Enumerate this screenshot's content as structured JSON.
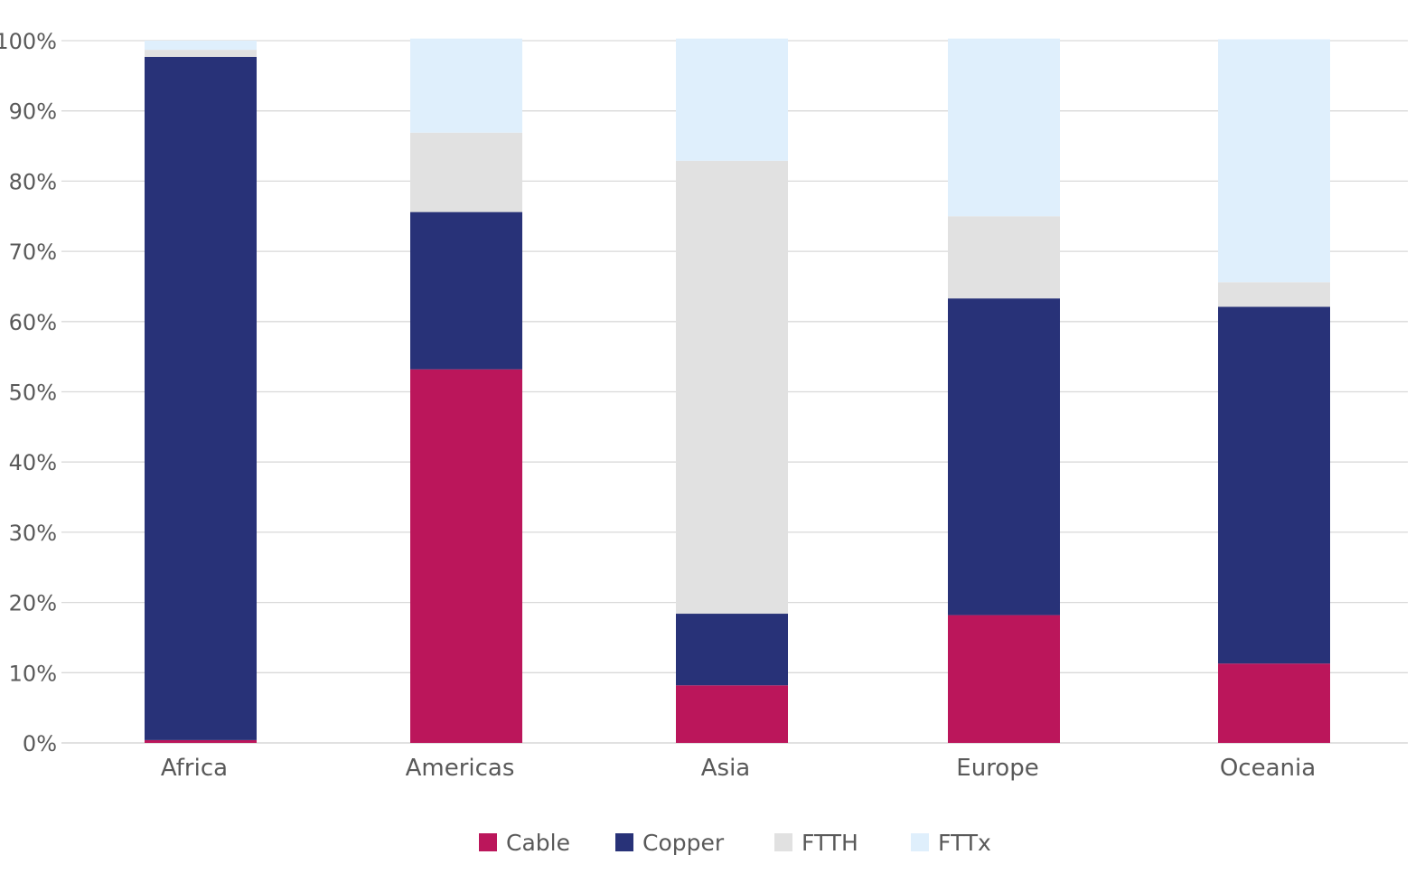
{
  "chart_data": {
    "type": "bar",
    "stacked": true,
    "categories": [
      "Africa",
      "Americas",
      "Asia",
      "Europe",
      "Oceania"
    ],
    "series": [
      {
        "name": "Cable",
        "color": "#bb165b",
        "values": [
          0.4,
          53.2,
          8.2,
          18.2,
          11.3
        ]
      },
      {
        "name": "Copper",
        "color": "#283278",
        "values": [
          97.3,
          22.4,
          10.2,
          45.1,
          50.8
        ]
      },
      {
        "name": "FTTH",
        "color": "#e1e1e1",
        "values": [
          1.0,
          11.3,
          64.5,
          11.7,
          3.5
        ]
      },
      {
        "name": "FTTx",
        "color": "#dfeffc",
        "values": [
          1.3,
          13.4,
          17.4,
          25.3,
          34.6
        ]
      }
    ],
    "yticks": [
      "0%",
      "10%",
      "20%",
      "30%",
      "40%",
      "50%",
      "60%",
      "70%",
      "80%",
      "90%",
      "100%"
    ],
    "ylim": [
      0,
      100
    ],
    "grid": true,
    "legend_position": "bottom"
  }
}
